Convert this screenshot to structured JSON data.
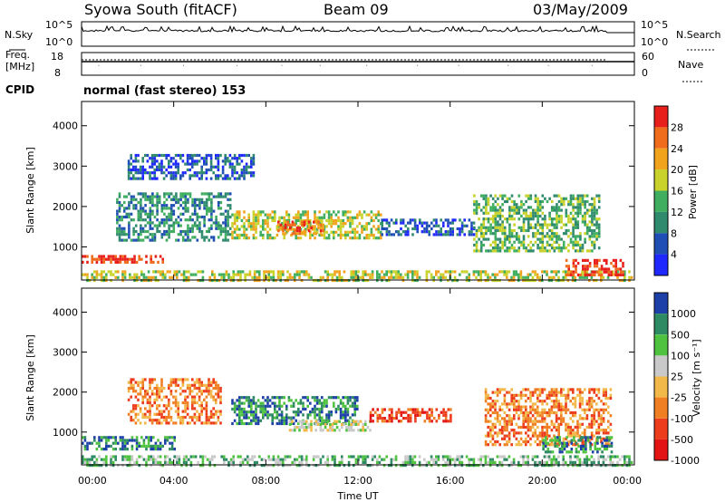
{
  "header": {
    "station": "Syowa South (fitACF)",
    "beam": "Beam 09",
    "date": "03/May/2009"
  },
  "strip_panels": {
    "nsky_label": "N.Sky",
    "nsearch_label": "N.Search",
    "freq_label_1": "Freq.",
    "freq_label_2": "[MHz]",
    "nave_label": "Nave",
    "cpid_label": "CPID",
    "cpid_value": "normal (fast stereo) 153",
    "noise_ticks": [
      "10^5",
      "10^0"
    ],
    "freq_ticks": [
      "18",
      "8"
    ],
    "nave_ticks": [
      "60",
      "0"
    ]
  },
  "axes": {
    "xlabel": "Time UT",
    "x_ticks": [
      "00:00",
      "04:00",
      "08:00",
      "12:00",
      "16:00",
      "20:00",
      "00:00"
    ],
    "ylabel": "Slant Range [km]",
    "y_ticks": [
      "1000",
      "2000",
      "3000",
      "4000"
    ]
  },
  "colors": {
    "power_scale": [
      "#1f28ff",
      "#1f4fb4",
      "#2f8a6e",
      "#3fae5f",
      "#c8d22a",
      "#f2a31e",
      "#ef6c1c",
      "#e8201c"
    ],
    "velocity_scale": [
      "#1d3fa8",
      "#2e8a63",
      "#4fc23f",
      "#c9c9c9",
      "#f2b84a",
      "#ef7f22",
      "#ec3c1c",
      "#e31414"
    ]
  },
  "chart_data": [
    {
      "type": "heatmap",
      "title": "",
      "quantity": "Power",
      "unit": "dB",
      "colorbar_label": "Power [dB]",
      "colorbar_ticks": [
        "4",
        "8",
        "12",
        "16",
        "20",
        "24",
        "28"
      ],
      "xlabel": "",
      "ylabel": "Slant Range [km]",
      "xlim_hours": [
        0,
        24
      ],
      "ylim_km": [
        180,
        4600
      ],
      "echo_regions": [
        {
          "t_start": 0.0,
          "t_end": 24.0,
          "r_min": 190,
          "r_max": 420,
          "level": 4
        },
        {
          "t_start": 0.0,
          "t_end": 3.5,
          "r_min": 600,
          "r_max": 800,
          "level": 7
        },
        {
          "t_start": 1.5,
          "t_end": 6.5,
          "r_min": 1200,
          "r_max": 2350,
          "level": 2
        },
        {
          "t_start": 2.0,
          "t_end": 7.5,
          "r_min": 2700,
          "r_max": 3300,
          "level": 1
        },
        {
          "t_start": 6.5,
          "t_end": 13.0,
          "r_min": 1200,
          "r_max": 1900,
          "level": 4
        },
        {
          "t_start": 8.5,
          "t_end": 10.5,
          "r_min": 1350,
          "r_max": 1650,
          "level": 6
        },
        {
          "t_start": 13.0,
          "t_end": 17.0,
          "r_min": 1300,
          "r_max": 1700,
          "level": 1
        },
        {
          "t_start": 17.0,
          "t_end": 22.5,
          "r_min": 900,
          "r_max": 2300,
          "level": 3
        },
        {
          "t_start": 21.0,
          "t_end": 23.5,
          "r_min": 300,
          "r_max": 700,
          "level": 7
        }
      ]
    },
    {
      "type": "heatmap",
      "title": "",
      "quantity": "Velocity",
      "unit": "m s^-1",
      "colorbar_label": "Velocity [m s⁻¹]",
      "colorbar_ticks": [
        "1000",
        "500",
        "100",
        "25",
        "-25",
        "-100",
        "-500",
        "-1000"
      ],
      "xlabel": "Time UT",
      "ylabel": "Slant Range [km]",
      "xlim_hours": [
        0,
        24
      ],
      "ylim_km": [
        180,
        4600
      ],
      "echo_regions": [
        {
          "t_start": 0.0,
          "t_end": 24.0,
          "r_min": 190,
          "r_max": 420,
          "level": 2
        },
        {
          "t_start": 0.0,
          "t_end": 4.0,
          "r_min": 600,
          "r_max": 900,
          "level": 1
        },
        {
          "t_start": 2.0,
          "t_end": 6.0,
          "r_min": 1200,
          "r_max": 2350,
          "level": 5
        },
        {
          "t_start": 6.5,
          "t_end": 12.0,
          "r_min": 1200,
          "r_max": 1900,
          "level": 1
        },
        {
          "t_start": 9.0,
          "t_end": 12.5,
          "r_min": 1050,
          "r_max": 1300,
          "level": 3
        },
        {
          "t_start": 12.5,
          "t_end": 16.0,
          "r_min": 1300,
          "r_max": 1600,
          "level": 6
        },
        {
          "t_start": 17.5,
          "t_end": 23.0,
          "r_min": 700,
          "r_max": 2100,
          "level": 5
        },
        {
          "t_start": 20.0,
          "t_end": 23.0,
          "r_min": 500,
          "r_max": 900,
          "level": 1
        }
      ]
    }
  ]
}
